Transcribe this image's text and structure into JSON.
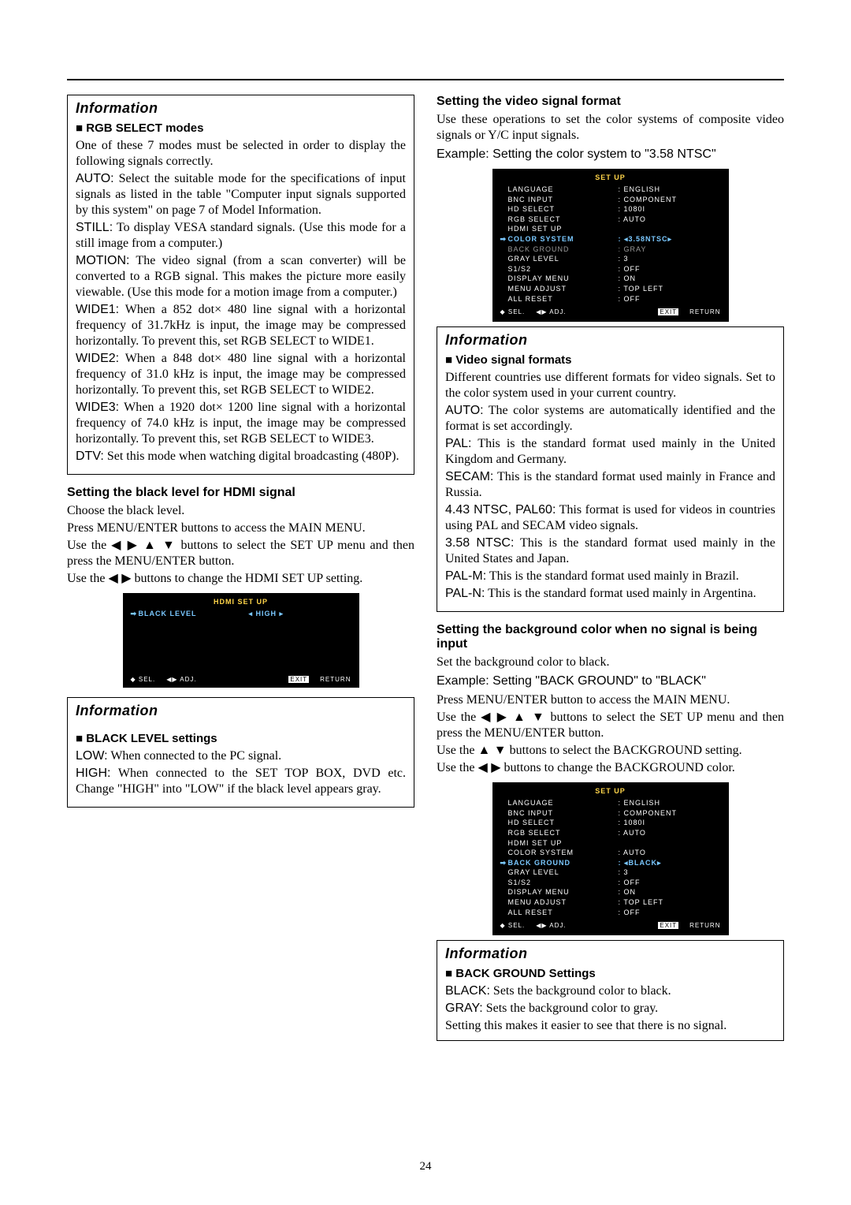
{
  "pageNumber": "24",
  "left": {
    "box1": {
      "title": "Information",
      "subhead": "RGB SELECT modes",
      "p1": "One of these 7 modes must be selected in order to display the following signals correctly.",
      "p2a": "AUTO:",
      "p2b": " Select the suitable mode for the specifications of input signals as listed in the table \"Computer input signals supported by this system\" on page 7 of Model Information.",
      "p3a": "STILL:",
      "p3b": " To display VESA standard signals. (Use this mode for a still image from a computer.)",
      "p4a": "MOTION:",
      "p4b": " The video signal (from a scan converter) will be converted to a RGB signal. This makes the picture more easily viewable. (Use this mode for a motion image from a computer.)",
      "p5a": "WIDE1:",
      "p5b": " When a 852 dot× 480 line signal with a horizontal frequency of 31.7kHz is input, the image may be compressed horizontally. To prevent this, set RGB SELECT to WIDE1.",
      "p6a": "WIDE2:",
      "p6b": " When a 848 dot× 480 line signal with a horizontal frequency of 31.0 kHz is input, the image may be compressed horizontally. To prevent this, set RGB SELECT to WIDE2.",
      "p7a": "WIDE3:",
      "p7b": " When a 1920 dot× 1200 line signal with a horizontal frequency of 74.0 kHz is input, the image may be compressed horizontally. To prevent this, set RGB SELECT to WIDE3.",
      "p8a": "DTV:",
      "p8b": " Set this mode when watching digital broadcasting (480P)."
    },
    "sec1": {
      "head": "Setting the black level for HDMI signal",
      "p1": "Choose the black level.",
      "p2": "Press MENU/ENTER buttons to access the MAIN MENU.",
      "p3a": "Use the ",
      "p3b": " buttons to select the SET UP menu and then press the MENU/ENTER button.",
      "p4a": "Use the ",
      "p4b": " buttons to change the HDMI SET UP setting."
    },
    "osd1": {
      "title": "HDMI SET UP",
      "row": {
        "label": "BLACK LEVEL",
        "value": "◂  HIGH  ▸"
      },
      "foot_sel": "◆ SEL.",
      "foot_adj": "◀▶ ADJ.",
      "foot_exit": "EXIT",
      "foot_return": "RETURN"
    },
    "box2": {
      "title": "Information",
      "subhead": "BLACK LEVEL settings",
      "p1a": "LOW:",
      "p1b": " When connected to the PC signal.",
      "p2a": "HIGH:",
      "p2b": " When connected to the SET TOP BOX, DVD etc. Change \"HIGH\" into \"LOW\" if the black level appears gray."
    }
  },
  "right": {
    "sec1": {
      "head": "Setting the video signal format",
      "p1": "Use these operations to set the color systems of composite video signals or Y/C input signals.",
      "p2": "Example: Setting the color system to \"3.58 NTSC\""
    },
    "osd1": {
      "title": "SET UP",
      "rows": [
        [
          "LANGUAGE",
          ": ENGLISH",
          "normal"
        ],
        [
          "BNC INPUT",
          ": COMPONENT",
          "normal"
        ],
        [
          "HD SELECT",
          ": 1080I",
          "normal"
        ],
        [
          "RGB SELECT",
          ": AUTO",
          "normal"
        ],
        [
          "HDMI SET UP",
          "",
          "normal"
        ],
        [
          "COLOR SYSTEM",
          ": ◂3.58NTSC▸",
          "sel"
        ],
        [
          "BACK GROUND",
          ": GRAY",
          "inactive"
        ],
        [
          "GRAY LEVEL",
          ": 3",
          "normal"
        ],
        [
          "S1/S2",
          ": OFF",
          "normal"
        ],
        [
          "DISPLAY MENU",
          ": ON",
          "normal"
        ],
        [
          "MENU ADJUST",
          ": TOP LEFT",
          "normal"
        ],
        [
          "ALL RESET",
          ": OFF",
          "normal"
        ]
      ],
      "foot_sel": "◆ SEL.",
      "foot_adj": "◀▶ ADJ.",
      "foot_exit": "EXIT",
      "foot_return": "RETURN"
    },
    "box1": {
      "title": "Information",
      "subhead": "Video signal formats",
      "p1": "Different countries use different formats for video signals. Set to the color system used in your current country.",
      "p2a": "AUTO:",
      "p2b": " The color systems are automatically identified and the format is set accordingly.",
      "p3a": "PAL:",
      "p3b": " This is the standard format used mainly in the United Kingdom and Germany.",
      "p4a": "SECAM:",
      "p4b": " This is the standard format used mainly in France and Russia.",
      "p5a": "4.43 NTSC, PAL60:",
      "p5b": " This format is used for videos in countries using PAL and SECAM video signals.",
      "p6a": "3.58 NTSC:",
      "p6b": " This is the standard format used mainly in the United States and Japan.",
      "p7a": "PAL-M:",
      "p7b": " This is the standard format used mainly in Brazil.",
      "p8a": "PAL-N:",
      "p8b": " This is the standard format used mainly in Argentina."
    },
    "sec2": {
      "head": "Setting the background color when no signal is being input",
      "p1": "Set the background color to black.",
      "p2": "Example: Setting \"BACK GROUND\" to \"BLACK\"",
      "p3": "Press MENU/ENTER button to access the MAIN MENU.",
      "p4a": "Use the ",
      "p4b": " buttons to select the SET UP menu and then press the MENU/ENTER button.",
      "p5a": "Use the ",
      "p5b": " buttons to select the BACKGROUND setting.",
      "p6a": "Use the ",
      "p6b": " buttons to change the BACKGROUND color."
    },
    "osd2": {
      "title": "SET UP",
      "rows": [
        [
          "LANGUAGE",
          ": ENGLISH",
          "normal"
        ],
        [
          "BNC INPUT",
          ": COMPONENT",
          "normal"
        ],
        [
          "HD SELECT",
          ": 1080I",
          "normal"
        ],
        [
          "RGB SELECT",
          ": AUTO",
          "normal"
        ],
        [
          "HDMI SET UP",
          "",
          "normal"
        ],
        [
          "COLOR SYSTEM",
          ": AUTO",
          "normal"
        ],
        [
          "BACK GROUND",
          ": ◂BLACK▸",
          "sel"
        ],
        [
          "GRAY LEVEL",
          ": 3",
          "normal"
        ],
        [
          "S1/S2",
          ": OFF",
          "normal"
        ],
        [
          "DISPLAY MENU",
          ": ON",
          "normal"
        ],
        [
          "MENU ADJUST",
          ": TOP LEFT",
          "normal"
        ],
        [
          "ALL RESET",
          ": OFF",
          "normal"
        ]
      ],
      "foot_sel": "◆ SEL.",
      "foot_adj": "◀▶ ADJ.",
      "foot_exit": "EXIT",
      "foot_return": "RETURN"
    },
    "box2": {
      "title": "Information",
      "subhead": "BACK GROUND Settings",
      "p1a": "BLACK:",
      "p1b": " Sets the background color to black.",
      "p2a": "GRAY:",
      "p2b": " Sets the background color to gray.",
      "p3": "Setting this makes it easier to see that there is no signal."
    }
  },
  "arrows": {
    "four": "◀ ▶ ▲ ▼",
    "lr": "◀ ▶",
    "ud": "▲ ▼"
  }
}
